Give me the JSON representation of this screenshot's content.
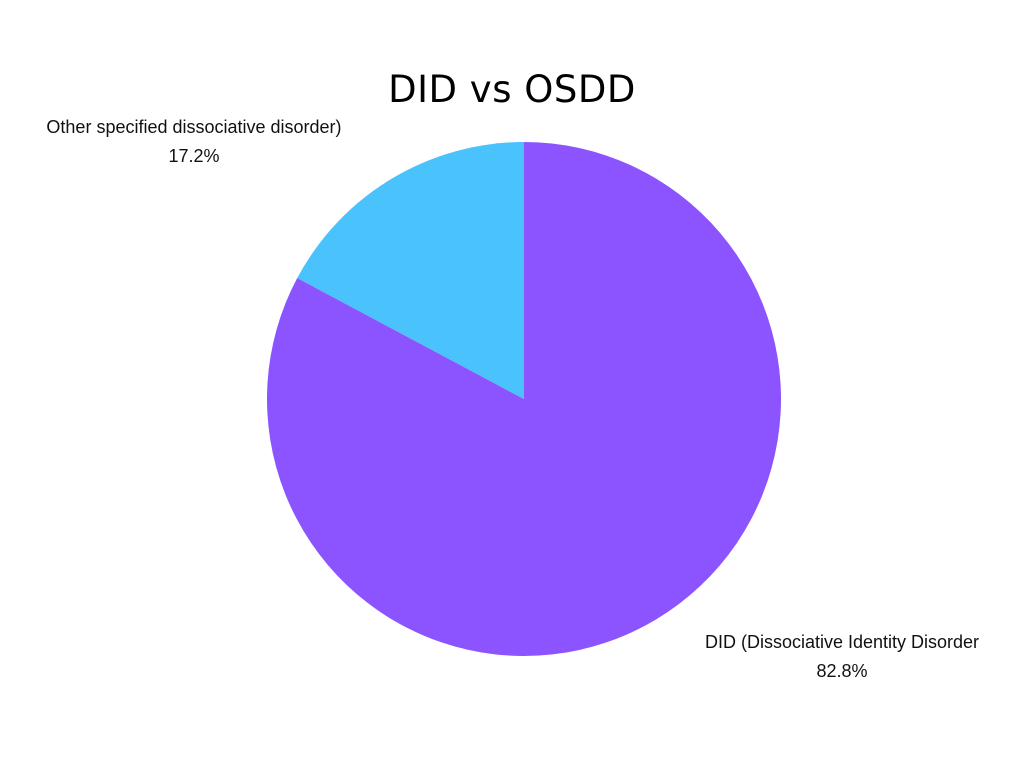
{
  "chart_data": {
    "type": "pie",
    "title": "DID vs OSDD",
    "slices": [
      {
        "label": "DID (Dissociative Identity Disorder",
        "value": 82.8,
        "value_label": "82.8%",
        "color": "#8c54ff"
      },
      {
        "label": "Other specified dissociative disorder)",
        "value": 17.2,
        "value_label": "17.2%",
        "color": "#4ac3fd"
      }
    ],
    "start_angle": "top",
    "direction": "clockwise",
    "legend": "none"
  }
}
